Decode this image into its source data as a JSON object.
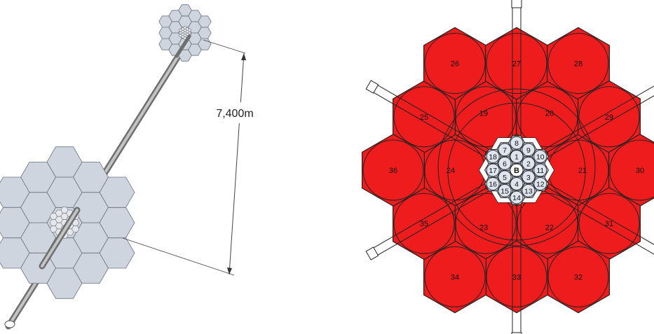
{
  "left_panel": {
    "distance_label": "7,400m"
  },
  "right_panel": {
    "outer_segments": [
      {
        "label": "19"
      },
      {
        "label": "20"
      },
      {
        "label": "21"
      },
      {
        "label": "22"
      },
      {
        "label": "23"
      },
      {
        "label": "24"
      },
      {
        "label": "25"
      },
      {
        "label": "26"
      },
      {
        "label": "27"
      },
      {
        "label": "28"
      },
      {
        "label": "29"
      },
      {
        "label": "30"
      },
      {
        "label": "31"
      },
      {
        "label": "32"
      },
      {
        "label": "33"
      },
      {
        "label": "34"
      },
      {
        "label": "35"
      },
      {
        "label": "36"
      }
    ],
    "inner_segments": [
      {
        "label": "B"
      },
      {
        "label": "1"
      },
      {
        "label": "2"
      },
      {
        "label": "3"
      },
      {
        "label": "4"
      },
      {
        "label": "5"
      },
      {
        "label": "6"
      },
      {
        "label": "7"
      },
      {
        "label": "8"
      },
      {
        "label": "9"
      },
      {
        "label": "10"
      },
      {
        "label": "11"
      },
      {
        "label": "12"
      },
      {
        "label": "13"
      },
      {
        "label": "14"
      },
      {
        "label": "15"
      },
      {
        "label": "16"
      },
      {
        "label": "17"
      },
      {
        "label": "18"
      }
    ]
  },
  "colors": {
    "big_segment_fill": "#ee1c1c",
    "small_segment_fill": "#c7d0e0",
    "grey_mirror_fill": "#cfd5df",
    "outline": "#222222",
    "rod": "#9a9a9a"
  }
}
